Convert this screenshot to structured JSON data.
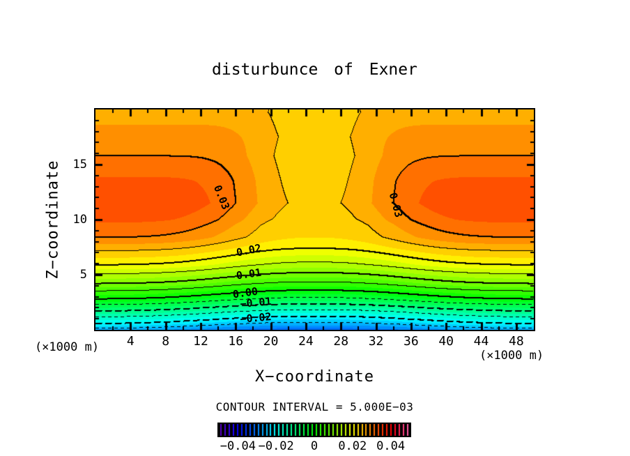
{
  "title": "disturbunce of Exner",
  "plot": {
    "x_axis": {
      "label": "X−coordinate",
      "unit": "(×1000 m)",
      "tick_labels": [
        4,
        8,
        12,
        16,
        20,
        24,
        28,
        32,
        36,
        40,
        44,
        48
      ],
      "minor_tick_step": 2,
      "major_tick_step": 4,
      "range": [
        0,
        50
      ]
    },
    "z_axis": {
      "label": "Z−coordinate",
      "unit": "(×1000 m)",
      "tick_labels": [
        5,
        10,
        15
      ],
      "minor_tick_step": 1,
      "major_tick_step": 5,
      "range": [
        0,
        20
      ]
    }
  },
  "footer": {
    "contour_interval_text": "CONTOUR INTERVAL = 5.000E−03"
  },
  "colorbar": {
    "range": [
      -0.05,
      0.05
    ],
    "segments": 46,
    "tick_labels": [
      {
        "text": "−0.04",
        "value": -0.04
      },
      {
        "text": "−0.02",
        "value": -0.02
      },
      {
        "text": "0",
        "value": 0
      },
      {
        "text": "0.02",
        "value": 0.02
      },
      {
        "text": "0.04",
        "value": 0.04
      }
    ]
  },
  "chart_data": {
    "type": "filled_contour",
    "title": "disturbunce of Exner",
    "xlabel": "X−coordinate",
    "ylabel": "Z−coordinate",
    "axis_unit": "(×1000 m)",
    "x_range": [
      0,
      50
    ],
    "z_range": [
      0,
      20
    ],
    "contour_interval": 0.005,
    "tone_interval": 0.0025,
    "contour_levels_drawn": [
      -0.025,
      -0.02,
      -0.015,
      -0.01,
      -0.005,
      0,
      0.005,
      0.01,
      0.015,
      0.02,
      0.025,
      0.03
    ],
    "line_style": {
      "negative": "dashed",
      "positive": "solid",
      "thick_multiple": 0.01
    },
    "colormap": {
      "type": "rainbow",
      "hue_at_min": 270,
      "hue_at_max": -30,
      "value_range": [
        -0.05,
        0.05
      ]
    },
    "field_extrema": {
      "max": 0.0345,
      "max_locations": [
        [
          8,
          11.5
        ],
        [
          42,
          11.5
        ]
      ],
      "min": -0.032,
      "min_location": [
        25,
        0
      ]
    },
    "contour_labels": [
      {
        "text": "0.03",
        "x": 14.4,
        "z": 12.0,
        "rotation": 68
      },
      {
        "text": "0.03",
        "x": 34.3,
        "z": 11.3,
        "rotation": 75
      },
      {
        "text": "0.02",
        "x": 17.5,
        "z": 7.2,
        "rotation": -12
      },
      {
        "text": "0.01",
        "x": 17.5,
        "z": 5.05,
        "rotation": -8
      },
      {
        "text": "0.00",
        "x": 17.1,
        "z": 3.35,
        "rotation": -8
      },
      {
        "text": "−0.01",
        "x": 18.3,
        "z": 2.45,
        "rotation": -5
      },
      {
        "text": "−0.02",
        "x": 18.3,
        "z": 1.05,
        "rotation": -5
      }
    ],
    "field_model": {
      "description": "pi(x,z) = S(z) - A(z)*exp(-(|x-25|/w(z))^2.5), w(z)=15-0.45z",
      "S_points": [
        [
          0,
          -0.026
        ],
        [
          0.55,
          -0.02
        ],
        [
          1.7,
          -0.01
        ],
        [
          2.8,
          0
        ],
        [
          4.2,
          0.01
        ],
        [
          5.9,
          0.02
        ],
        [
          8.4,
          0.03
        ],
        [
          10,
          0.033
        ],
        [
          11.5,
          0.0345
        ],
        [
          13.5,
          0.033
        ],
        [
          15.8,
          0.03
        ],
        [
          17.5,
          0.0285
        ],
        [
          19.75,
          0.0265
        ]
      ],
      "A_points": [
        [
          0,
          0.006
        ],
        [
          3.6,
          0.0057
        ],
        [
          7.4,
          0.006
        ],
        [
          9.5,
          0.009
        ],
        [
          11.5,
          0.01
        ],
        [
          13.5,
          0.009
        ],
        [
          15.8,
          0.0065
        ],
        [
          17.5,
          0.0045
        ],
        [
          19.75,
          0.003
        ]
      ],
      "w_base": 15,
      "w_slope": 0.45,
      "shape_exponent": 2.5
    }
  }
}
